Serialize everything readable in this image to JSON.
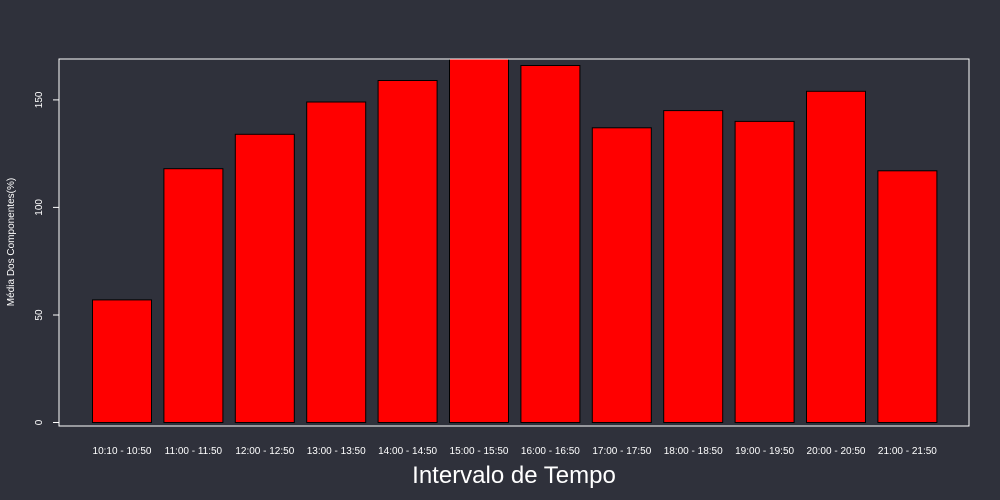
{
  "colors": {
    "background": "#2f313b",
    "bar_fill": "#ff0000",
    "bar_stroke": "#000000",
    "axis": "#ffffff",
    "text": "#ffffff"
  },
  "chart_data": {
    "type": "bar",
    "title": "",
    "xlabel": "Intervalo de Tempo",
    "ylabel": "Média Dos Componentes(%)",
    "categories": [
      "10:10 - 10:50",
      "11:00 - 11:50",
      "12:00 - 12:50",
      "13:00 - 13:50",
      "14:00 - 14:50",
      "15:00 - 15:50",
      "16:00 - 16:50",
      "17:00 - 17:50",
      "18:00 - 18:50",
      "19:00 - 19:50",
      "20:00 - 20:50",
      "21:00 - 21:50"
    ],
    "values": [
      57,
      118,
      134,
      149,
      159,
      169,
      166,
      137,
      145,
      140,
      154,
      117
    ],
    "yticks": [
      0,
      50,
      100,
      150
    ],
    "ylim": [
      0,
      169
    ],
    "grid": false,
    "legend": "none"
  }
}
